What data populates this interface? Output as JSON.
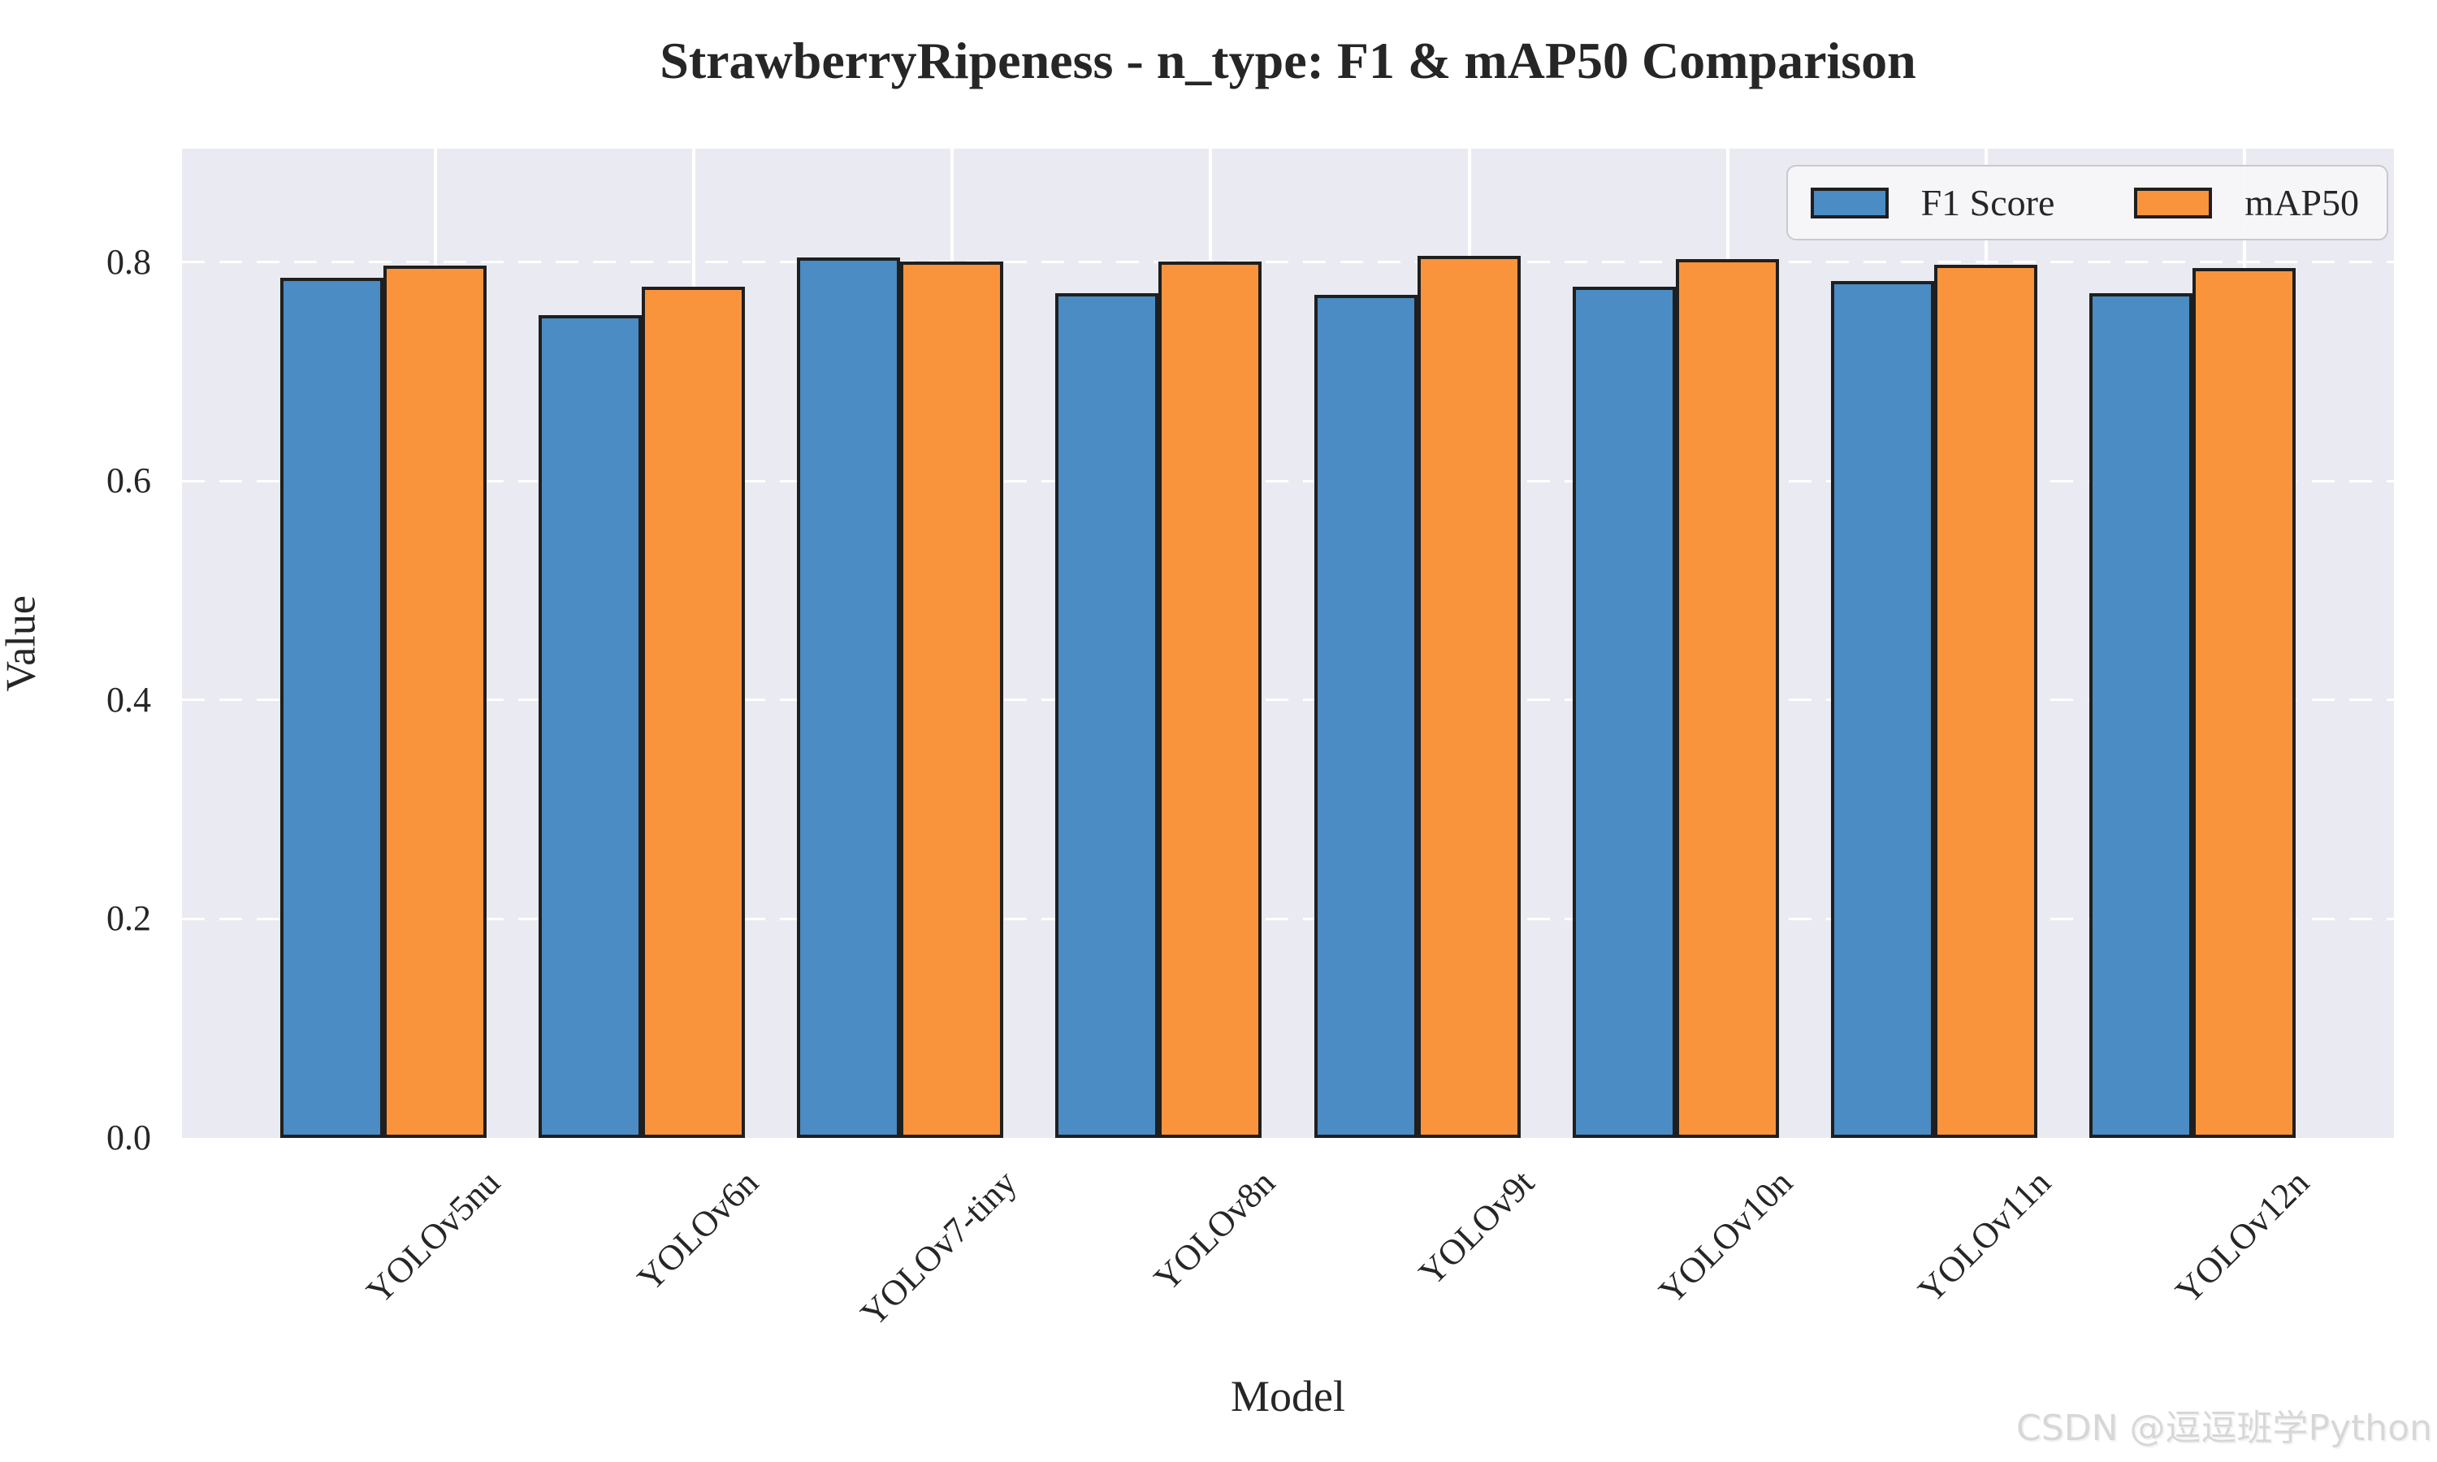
{
  "title": "StrawberryRipeness - n_type: F1 & mAP50 Comparison",
  "watermark": "CSDN @逗逗班学Python",
  "chart_data": {
    "type": "bar",
    "title": "StrawberryRipeness - n_type: F1 & mAP50 Comparison",
    "xlabel": "Model",
    "ylabel": "Value",
    "categories": [
      "YOLOv5nu",
      "YOLOv6n",
      "YOLOv7-tiny",
      "YOLOv8n",
      "YOLOv9t",
      "YOLOv10n",
      "YOLOv11n",
      "YOLOv12n"
    ],
    "series": [
      {
        "name": "F1 Score",
        "color": "#4a8cc3",
        "values": [
          0.786,
          0.752,
          0.804,
          0.772,
          0.77,
          0.778,
          0.783,
          0.772
        ]
      },
      {
        "name": "mAP50",
        "color": "#f9943c",
        "values": [
          0.797,
          0.778,
          0.801,
          0.801,
          0.806,
          0.803,
          0.798,
          0.795
        ]
      }
    ],
    "ylim": [
      0,
      0.9038
    ],
    "yticks": [
      0.0,
      0.2,
      0.4,
      0.6,
      0.8
    ],
    "ytick_format_decimals": 1,
    "grid": true,
    "grid_style": "horizontal-dashed-vertical-solid-white",
    "legend_position": "upper right",
    "legend_labels": [
      "F1 Score",
      "mAP50"
    ],
    "bar_edge_color": "#1f1f1f",
    "plot_bg": "#eaeaf2",
    "text_color": "#262626"
  }
}
